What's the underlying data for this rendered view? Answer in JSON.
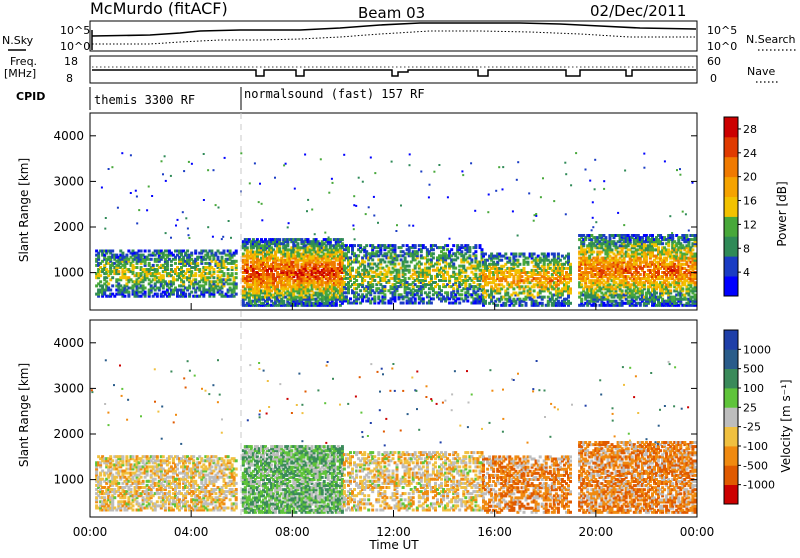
{
  "header": {
    "station": "McMurdo (fitACF)",
    "beam": "Beam 03",
    "date": "02/Dec/2011"
  },
  "noise_panel": {
    "left_label": "N.Sky",
    "left_ticks": [
      "10^5",
      "10^0"
    ],
    "right_label": "N.Search",
    "right_ticks": [
      "10^5",
      "10^0"
    ]
  },
  "freq_panel": {
    "left_label_1": "Freq.",
    "left_label_2": "[MHz]",
    "left_ticks": [
      "18",
      "8"
    ],
    "right_label": "Nave",
    "right_ticks": [
      "60",
      "0"
    ]
  },
  "cpid_panel": {
    "label": "CPID",
    "programs": [
      {
        "name": "themis 3300 RF",
        "start": "00:00"
      },
      {
        "name": "normalsound (fast) 157 RF",
        "start": "06:00"
      }
    ]
  },
  "colors": {
    "power_scale": [
      "#0000ff",
      "#1a3cc4",
      "#2f8a57",
      "#48a83a",
      "#f2c200",
      "#f5a300",
      "#f07a00",
      "#e03a00",
      "#cc0000"
    ],
    "velocity_scale": [
      "#1f3fa8",
      "#2a5c8a",
      "#3a8a5a",
      "#5fc43a",
      "#bdbdbd",
      "#f0c040",
      "#f08a10",
      "#e05a00",
      "#cc0000"
    ]
  },
  "chart_data": [
    {
      "type": "heatmap",
      "panel": "power",
      "xlabel": "Time UT",
      "ylabel": "Slant Range [km]",
      "x_ticks": [
        "00:00",
        "04:00",
        "08:00",
        "12:00",
        "16:00",
        "20:00",
        "00:00"
      ],
      "y_ticks": [
        1000,
        2000,
        3000,
        4000
      ],
      "ylim": [
        180,
        4500
      ],
      "colorbar_label": "Power [dB]",
      "colorbar_ticks": [
        4,
        8,
        12,
        16,
        20,
        24,
        28
      ],
      "colorbar_range": [
        0,
        30
      ]
    },
    {
      "type": "heatmap",
      "panel": "velocity",
      "xlabel": "Time UT",
      "ylabel": "Slant Range [km]",
      "x_ticks": [
        "00:00",
        "04:00",
        "08:00",
        "12:00",
        "16:00",
        "20:00",
        "00:00"
      ],
      "y_ticks": [
        1000,
        2000,
        3000,
        4000
      ],
      "ylim": [
        180,
        4500
      ],
      "colorbar_label": "Velocity [m s⁻¹]",
      "colorbar_ticks": [
        "1000",
        "500",
        "100",
        "25",
        "-25",
        "-100",
        "-500",
        "-1000"
      ]
    }
  ]
}
